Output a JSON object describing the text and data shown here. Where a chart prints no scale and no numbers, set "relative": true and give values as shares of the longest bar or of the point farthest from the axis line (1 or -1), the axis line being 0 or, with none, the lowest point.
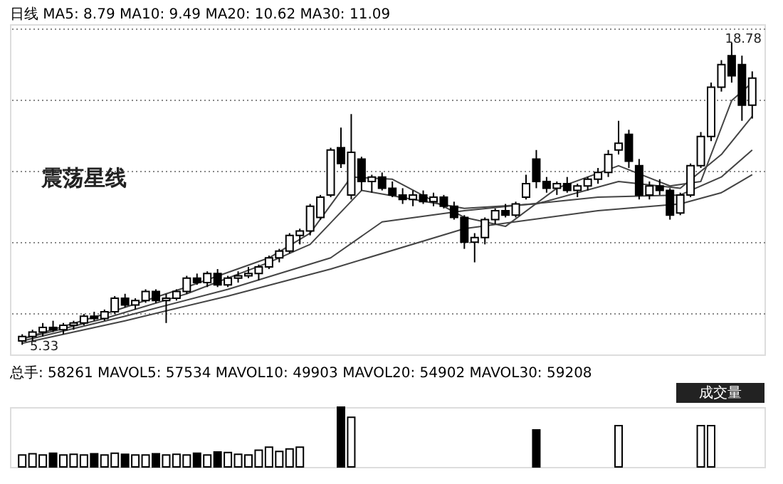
{
  "chart_data": [
    {
      "type": "candlestick",
      "title": "日线 MA5: 8.79 MA10: 9.49 MA20: 10.62 MA30: 11.09",
      "color": "#000000",
      "categories": [
        null,
        null,
        null,
        null,
        null,
        null,
        null,
        null,
        null,
        null,
        null,
        null,
        null,
        null,
        null,
        null,
        null,
        null,
        null,
        null,
        null,
        null,
        null,
        null,
        null,
        null,
        null,
        null,
        null,
        null,
        null,
        null,
        null,
        null,
        null,
        null,
        null,
        null,
        null,
        null,
        null,
        null,
        null,
        null,
        null,
        null,
        null,
        null,
        null,
        null,
        null,
        null,
        null,
        null,
        null,
        null,
        null,
        null,
        null,
        null,
        null,
        null,
        null,
        null,
        null,
        null,
        null,
        null,
        null,
        null,
        null,
        null
      ],
      "ohlc": [
        [
          5.5,
          5.8,
          5.33,
          5.7
        ],
        [
          5.7,
          6.0,
          5.5,
          5.9
        ],
        [
          5.9,
          6.3,
          5.7,
          6.1
        ],
        [
          6.1,
          6.4,
          5.9,
          6.0
        ],
        [
          6.0,
          6.3,
          5.8,
          6.2
        ],
        [
          6.2,
          6.4,
          6.0,
          6.3
        ],
        [
          6.3,
          6.7,
          6.2,
          6.6
        ],
        [
          6.6,
          6.8,
          6.4,
          6.5
        ],
        [
          6.5,
          6.9,
          6.4,
          6.8
        ],
        [
          6.8,
          7.5,
          6.7,
          7.4
        ],
        [
          7.4,
          7.6,
          7.0,
          7.1
        ],
        [
          7.1,
          7.4,
          6.9,
          7.3
        ],
        [
          7.3,
          7.8,
          7.2,
          7.7
        ],
        [
          7.7,
          7.8,
          7.2,
          7.3
        ],
        [
          7.3,
          7.6,
          6.3,
          7.4
        ],
        [
          7.4,
          7.8,
          7.3,
          7.7
        ],
        [
          7.7,
          8.4,
          7.6,
          8.3
        ],
        [
          8.3,
          8.5,
          8.0,
          8.1
        ],
        [
          8.1,
          8.6,
          7.9,
          8.5
        ],
        [
          8.5,
          8.7,
          7.9,
          8.0
        ],
        [
          8.0,
          8.4,
          7.9,
          8.3
        ],
        [
          8.3,
          8.6,
          8.1,
          8.4
        ],
        [
          8.4,
          8.8,
          8.3,
          8.5
        ],
        [
          8.5,
          8.9,
          8.2,
          8.8
        ],
        [
          8.8,
          9.3,
          8.7,
          9.2
        ],
        [
          9.2,
          9.6,
          9.0,
          9.5
        ],
        [
          9.5,
          10.3,
          9.4,
          10.2
        ],
        [
          10.2,
          10.5,
          9.8,
          10.4
        ],
        [
          10.4,
          11.6,
          10.2,
          11.5
        ],
        [
          11.0,
          12.0,
          10.9,
          11.9
        ],
        [
          12.0,
          14.1,
          11.9,
          14.0
        ],
        [
          14.1,
          15.0,
          13.2,
          13.4
        ],
        [
          12.0,
          15.6,
          11.8,
          13.9
        ],
        [
          13.6,
          13.7,
          12.2,
          12.6
        ],
        [
          12.6,
          12.9,
          12.1,
          12.8
        ],
        [
          12.8,
          13.0,
          12.2,
          12.3
        ],
        [
          12.3,
          12.6,
          11.9,
          12.0
        ],
        [
          12.0,
          12.3,
          11.6,
          11.8
        ],
        [
          11.8,
          12.2,
          11.5,
          12.0
        ],
        [
          12.0,
          12.2,
          11.6,
          11.7
        ],
        [
          11.7,
          12.1,
          11.5,
          11.9
        ],
        [
          11.9,
          12.0,
          11.4,
          11.5
        ],
        [
          11.5,
          11.7,
          10.9,
          11.0
        ],
        [
          11.0,
          11.1,
          9.6,
          9.9
        ],
        [
          9.9,
          10.3,
          9.0,
          10.1
        ],
        [
          10.1,
          11.0,
          9.8,
          10.9
        ],
        [
          10.9,
          11.4,
          10.7,
          11.3
        ],
        [
          11.3,
          11.6,
          11.0,
          11.1
        ],
        [
          11.1,
          11.7,
          11.0,
          11.6
        ],
        [
          11.9,
          12.9,
          11.8,
          12.5
        ],
        [
          13.6,
          14.0,
          12.3,
          12.6
        ],
        [
          12.6,
          12.8,
          12.1,
          12.3
        ],
        [
          12.3,
          12.6,
          12.0,
          12.5
        ],
        [
          12.5,
          12.8,
          12.1,
          12.2
        ],
        [
          12.2,
          12.5,
          11.9,
          12.4
        ],
        [
          12.4,
          12.8,
          12.2,
          12.7
        ],
        [
          12.7,
          13.2,
          12.5,
          13.0
        ],
        [
          13.0,
          14.0,
          12.8,
          13.8
        ],
        [
          14.0,
          15.3,
          13.8,
          14.3
        ],
        [
          14.7,
          14.9,
          13.2,
          13.5
        ],
        [
          13.3,
          13.6,
          11.8,
          12.0
        ],
        [
          12.0,
          12.6,
          11.8,
          12.4
        ],
        [
          12.4,
          12.7,
          12.0,
          12.2
        ],
        [
          12.2,
          12.3,
          10.9,
          11.1
        ],
        [
          11.2,
          12.1,
          11.1,
          12.0
        ],
        [
          12.0,
          13.4,
          11.9,
          13.3
        ],
        [
          13.3,
          14.8,
          13.2,
          14.6
        ],
        [
          14.6,
          17.0,
          14.4,
          16.8
        ],
        [
          16.8,
          18.0,
          16.6,
          17.8
        ],
        [
          18.2,
          18.78,
          17.0,
          17.3
        ],
        [
          17.8,
          18.2,
          15.3,
          16.0
        ],
        [
          16.0,
          17.5,
          15.4,
          17.2
        ]
      ],
      "series": [
        {
          "type": "line",
          "color": "#444444",
          "values": [
            5.6,
            null,
            null,
            null,
            null,
            null,
            null,
            null,
            6.7,
            null,
            null,
            null,
            null,
            null,
            null,
            null,
            7.9,
            null,
            null,
            null,
            null,
            null,
            null,
            null,
            9.2,
            null,
            null,
            null,
            10.3,
            null,
            null,
            null,
            12.8,
            null,
            null,
            null,
            12.7,
            null,
            null,
            null,
            null,
            null,
            null,
            11.0,
            null,
            null,
            null,
            10.6,
            null,
            null,
            null,
            null,
            12.3,
            null,
            null,
            null,
            null,
            null,
            13.3,
            null,
            null,
            null,
            null,
            12.4,
            null,
            null,
            12.6,
            null,
            null,
            16.2,
            null,
            17.0
          ]
        },
        {
          "type": "line",
          "color": "#444444",
          "values": [
            5.6,
            null,
            null,
            null,
            null,
            null,
            null,
            null,
            6.5,
            null,
            null,
            null,
            null,
            null,
            null,
            null,
            7.6,
            null,
            null,
            null,
            null,
            null,
            null,
            null,
            9.0,
            null,
            null,
            null,
            9.8,
            null,
            null,
            null,
            null,
            12.2,
            null,
            null,
            null,
            null,
            null,
            null,
            null,
            null,
            null,
            11.4,
            null,
            null,
            null,
            null,
            null,
            null,
            11.6,
            null,
            null,
            null,
            null,
            null,
            null,
            null,
            12.6,
            null,
            null,
            null,
            null,
            null,
            12.3,
            null,
            null,
            null,
            13.8,
            null,
            null,
            15.5
          ]
        },
        {
          "type": "line",
          "color": "#444444",
          "values": [
            5.5,
            null,
            null,
            null,
            null,
            null,
            null,
            null,
            null,
            null,
            6.6,
            null,
            null,
            null,
            null,
            null,
            null,
            null,
            null,
            null,
            7.8,
            null,
            null,
            null,
            null,
            null,
            null,
            null,
            null,
            null,
            9.2,
            null,
            null,
            null,
            null,
            10.8,
            null,
            null,
            null,
            null,
            null,
            null,
            null,
            11.3,
            null,
            null,
            null,
            null,
            null,
            null,
            null,
            null,
            null,
            null,
            null,
            null,
            11.9,
            null,
            null,
            null,
            null,
            null,
            null,
            null,
            12.0,
            null,
            null,
            null,
            12.8,
            null,
            null,
            14.0
          ]
        },
        {
          "type": "line",
          "color": "#444444",
          "values": [
            5.4,
            null,
            null,
            null,
            null,
            null,
            null,
            null,
            null,
            null,
            6.4,
            null,
            null,
            null,
            null,
            null,
            null,
            null,
            null,
            null,
            7.5,
            null,
            null,
            null,
            null,
            null,
            null,
            null,
            null,
            null,
            8.7,
            null,
            null,
            null,
            null,
            null,
            null,
            null,
            null,
            null,
            null,
            null,
            null,
            10.5,
            null,
            null,
            null,
            null,
            null,
            null,
            null,
            null,
            null,
            null,
            null,
            null,
            11.3,
            null,
            null,
            null,
            null,
            null,
            null,
            null,
            11.6,
            null,
            null,
            null,
            12.1,
            null,
            null,
            12.9
          ]
        }
      ],
      "ylim": [
        4.9,
        19.6
      ],
      "yticks": [
        {
          "value": 6.72,
          "label": null
        },
        {
          "value": 9.88,
          "label": null
        },
        {
          "value": 13.1,
          "label": null
        },
        {
          "value": 16.26,
          "label": null
        },
        {
          "value": 19.42,
          "label": null
        }
      ],
      "grid": "y",
      "tick_labels": false,
      "legend": false,
      "annotations": [
        "震荡星线",
        "18.78",
        "5.33"
      ]
    },
    {
      "type": "bar",
      "relative": true,
      "title": "总手: 58261 MAVOL5: 57534 MAVOL10: 49903 MAVOL20: 54902 MAVOL30: 59208",
      "categories": [
        null,
        null,
        null,
        null,
        null,
        null,
        null,
        null,
        null,
        null,
        null,
        null,
        null,
        null,
        null,
        null,
        null,
        null,
        null,
        null,
        null,
        null,
        null,
        null,
        null,
        null,
        null,
        null,
        null,
        null,
        null,
        null,
        null,
        null,
        null,
        null,
        null,
        null,
        null,
        null,
        null,
        null,
        null,
        null,
        null,
        null,
        null,
        null,
        null,
        null,
        null,
        null,
        null,
        null,
        null,
        null,
        null,
        null,
        null,
        null,
        null,
        null,
        null,
        null,
        null,
        null,
        null,
        null,
        null,
        null,
        null,
        null
      ],
      "values": [
        0.2,
        0.22,
        0.2,
        0.23,
        0.2,
        0.21,
        0.2,
        0.22,
        0.2,
        0.23,
        0.21,
        0.2,
        0.2,
        0.22,
        0.2,
        0.21,
        0.2,
        0.23,
        0.2,
        0.25,
        0.24,
        0.21,
        0.2,
        0.28,
        0.33,
        0.26,
        0.3,
        0.33,
        null,
        null,
        null,
        1.0,
        0.83,
        null,
        null,
        null,
        null,
        null,
        null,
        null,
        null,
        null,
        null,
        null,
        null,
        null,
        null,
        null,
        null,
        null,
        0.62,
        null,
        null,
        null,
        null,
        null,
        null,
        null,
        0.69,
        null,
        null,
        null,
        null,
        null,
        null,
        null,
        0.69,
        0.69,
        null,
        null,
        null,
        null
      ],
      "colors": [
        "#ffffff",
        "#ffffff",
        "#ffffff",
        "#000000",
        "#ffffff",
        "#ffffff",
        "#ffffff",
        "#000000",
        "#ffffff",
        "#ffffff",
        "#000000",
        "#ffffff",
        "#ffffff",
        "#000000",
        "#ffffff",
        "#ffffff",
        "#ffffff",
        "#000000",
        "#ffffff",
        "#000000",
        "#ffffff",
        "#ffffff",
        "#ffffff",
        "#ffffff",
        "#ffffff",
        "#ffffff",
        "#ffffff",
        "#ffffff",
        "#ffffff",
        "#ffffff",
        "#ffffff",
        "#000000",
        "#ffffff",
        "#000000",
        "#ffffff",
        "#000000",
        "#000000",
        "#000000",
        "#ffffff",
        "#000000",
        "#ffffff",
        "#000000",
        "#000000",
        "#000000",
        "#ffffff",
        "#ffffff",
        "#ffffff",
        "#000000",
        "#ffffff",
        "#ffffff",
        "#000000",
        "#000000",
        "#ffffff",
        "#000000",
        "#ffffff",
        "#ffffff",
        "#ffffff",
        "#ffffff",
        "#ffffff",
        "#000000",
        "#000000",
        "#ffffff",
        "#000000",
        "#000000",
        "#ffffff",
        "#ffffff",
        "#ffffff",
        "#ffffff",
        "#ffffff",
        "#000000",
        "#000000",
        "#ffffff"
      ],
      "annotations": [
        "成交量"
      ]
    }
  ]
}
